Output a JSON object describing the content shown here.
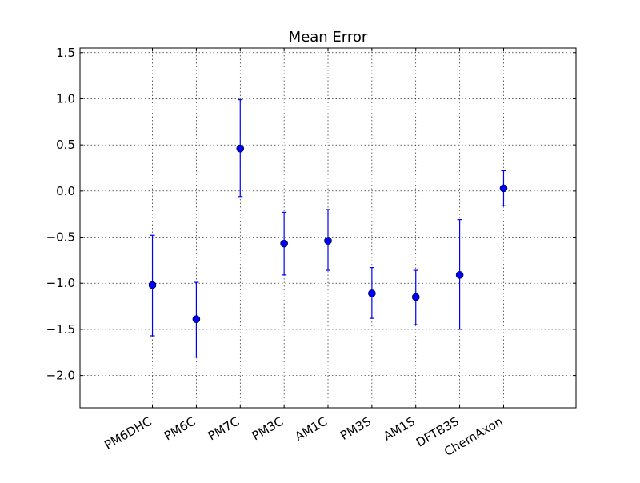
{
  "chart_data": {
    "type": "scatter",
    "title": "Mean Error",
    "xlabel": "",
    "ylabel": "",
    "categories": [
      "PM6DHC",
      "PM6C",
      "PM7C",
      "PM3C",
      "AM1C",
      "PM3S",
      "AM1S",
      "DFTB3S",
      "ChemAxon"
    ],
    "series": [
      {
        "values": [
          -1.02,
          -1.39,
          0.46,
          -0.57,
          -0.54,
          -1.11,
          -1.15,
          -0.91,
          0.03
        ],
        "error_low": [
          -1.57,
          -1.8,
          -0.06,
          -0.91,
          -0.86,
          -1.38,
          -1.45,
          -1.5,
          -0.16
        ],
        "error_high": [
          -0.48,
          -0.99,
          0.99,
          -0.23,
          -0.2,
          -0.83,
          -0.86,
          -0.31,
          0.22
        ],
        "color": "#0000ff"
      }
    ],
    "ylim": [
      -2.35,
      1.55
    ],
    "xlim": [
      -1.65,
      9.65
    ],
    "yticks": [
      1.5,
      1.0,
      0.5,
      0.0,
      -0.5,
      -1.0,
      -1.5,
      -2.0
    ],
    "ytick_labels": [
      "1.5",
      "1.0",
      "0.5",
      "0.0",
      "−0.5",
      "−1.0",
      "−1.5",
      "−2.0"
    ],
    "grid": true,
    "grid_style": "dotted",
    "legend": "none",
    "xtick_rotation": 30
  }
}
